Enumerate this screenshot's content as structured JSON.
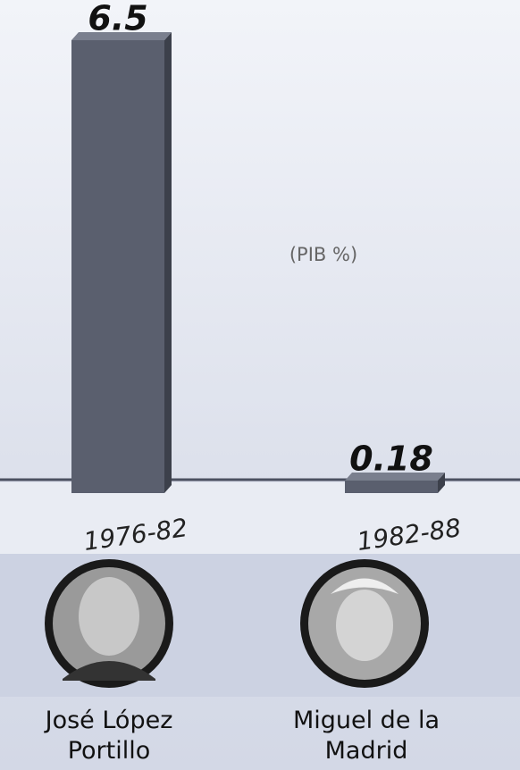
{
  "chart_data": {
    "type": "bar",
    "subtitle": "(PIB %)",
    "categories": [
      "1976-82",
      "1982-88"
    ],
    "values": [
      6.5,
      0.18
    ],
    "annotations": [
      "José López Portillo",
      "Miguel de la Madrid"
    ],
    "color": "#5a5f6e"
  }
}
